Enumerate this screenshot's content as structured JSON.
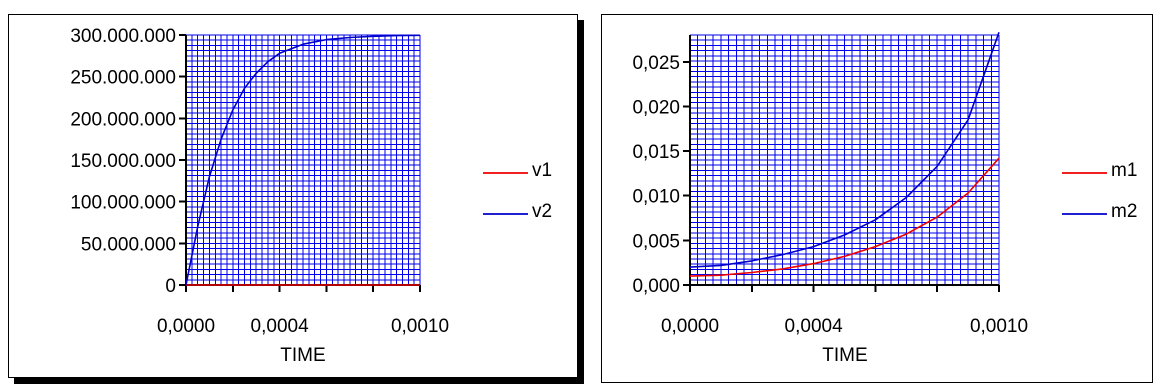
{
  "colors": {
    "grid": "#0000ee",
    "v1": "#ee0000",
    "v2": "#0000cc",
    "m1": "#ee0000",
    "m2": "#0000cc",
    "axis": "#000000"
  },
  "chart_data": [
    {
      "type": "line",
      "xlabel": "TIME",
      "ylabel": "",
      "xlim": [
        0,
        0.001
      ],
      "ylim": [
        0,
        300000000
      ],
      "x_ticks": [
        0,
        0.0002,
        0.0004,
        0.0006,
        0.0008,
        0.001
      ],
      "x_tick_labels": [
        "0,0000",
        "",
        "0,0004",
        "",
        "",
        "0,0010"
      ],
      "y_ticks": [
        0,
        50000000,
        100000000,
        150000000,
        200000000,
        250000000,
        300000000
      ],
      "y_tick_labels": [
        "0",
        "50.000.000",
        "100.000.000",
        "150.000.000",
        "200.000.000",
        "250.000.000",
        "300.000.000"
      ],
      "grid": true,
      "legend": "right",
      "series": [
        {
          "name": "v1",
          "x": [
            0,
            0.001
          ],
          "values": [
            0,
            0
          ]
        },
        {
          "name": "v2",
          "x": [
            0,
            5e-05,
            0.0001,
            0.00015,
            0.0002,
            0.00025,
            0.0003,
            0.00035,
            0.0004,
            0.0005,
            0.0006,
            0.0007,
            0.0008,
            0.0009,
            0.001
          ],
          "values": [
            0,
            70000000,
            130000000,
            175000000,
            210000000,
            236000000,
            254000000,
            268000000,
            278000000,
            289000000,
            294500000,
            297000000,
            298500000,
            299300000,
            299700000
          ]
        }
      ]
    },
    {
      "type": "line",
      "xlabel": "TIME",
      "ylabel": "",
      "xlim": [
        0,
        0.001
      ],
      "ylim": [
        0,
        0.028
      ],
      "x_ticks": [
        0,
        0.0002,
        0.0004,
        0.0006,
        0.0008,
        0.001
      ],
      "x_tick_labels": [
        "0,0000",
        "",
        "0,0004",
        "",
        "",
        "0,0010"
      ],
      "y_ticks": [
        0,
        0.005,
        0.01,
        0.015,
        0.02,
        0.025
      ],
      "y_tick_labels": [
        "0,000",
        "0,005",
        "0,010",
        "0,015",
        "0,020",
        "0,025"
      ],
      "grid": true,
      "legend": "right",
      "series": [
        {
          "name": "m1",
          "x": [
            0,
            0.0001,
            0.0002,
            0.0003,
            0.0004,
            0.0005,
            0.0006,
            0.0007,
            0.0008,
            0.0009,
            0.001
          ],
          "values": [
            0.001,
            0.0011,
            0.0014,
            0.0018,
            0.0024,
            0.0032,
            0.0043,
            0.0057,
            0.0076,
            0.0103,
            0.0142
          ]
        },
        {
          "name": "m2",
          "x": [
            0,
            0.0001,
            0.0002,
            0.0003,
            0.0004,
            0.0005,
            0.0006,
            0.0007,
            0.0008,
            0.0009,
            0.001
          ],
          "values": [
            0.002,
            0.0022,
            0.0027,
            0.0034,
            0.0043,
            0.0056,
            0.0073,
            0.0098,
            0.0133,
            0.0185,
            0.0283
          ]
        }
      ]
    }
  ]
}
